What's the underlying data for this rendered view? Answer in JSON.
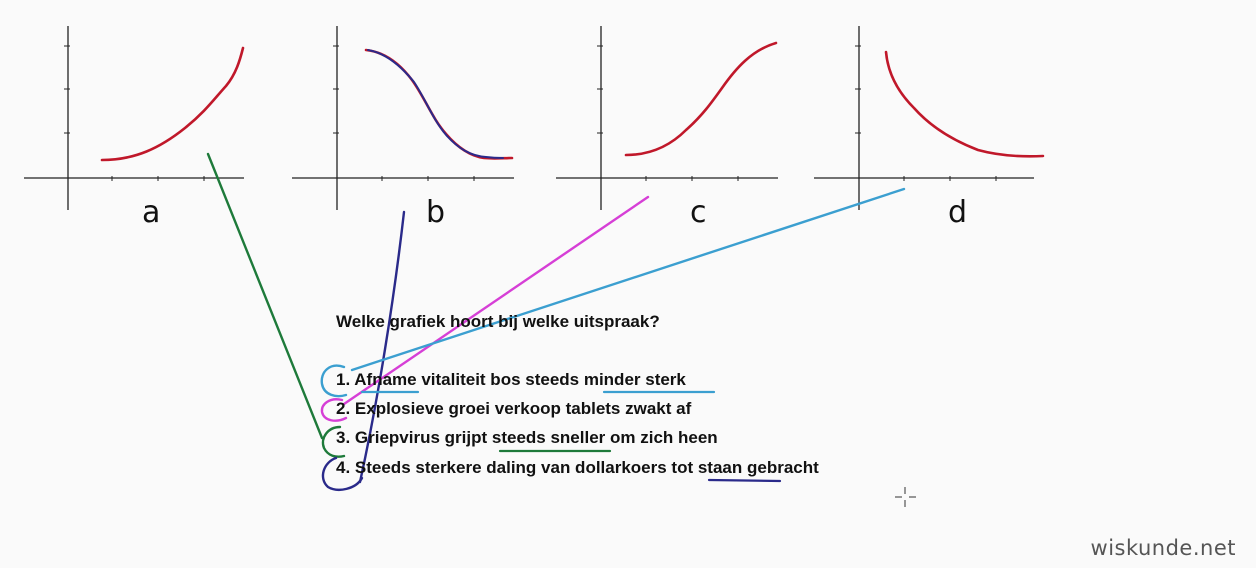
{
  "graphs": [
    {
      "label": "a",
      "shape": "increasing, steeper and steeper"
    },
    {
      "label": "b",
      "shape": "decreasing, S-shaped"
    },
    {
      "label": "c",
      "shape": "increasing, S-shaped"
    },
    {
      "label": "d",
      "shape": "decreasing, less and less steep"
    }
  ],
  "question": "Welke grafiek hoort bij welke uitspraak?",
  "statements": [
    "1. Afname vitaliteit bos steeds minder sterk",
    "2. Explosieve groei verkoop tablets zwakt af",
    "3. Griepvirus grijpt steeds sneller om zich heen",
    "4. Steeds sterkere daling van dollarkoers tot staan gebracht"
  ],
  "matches": [
    {
      "statement": "1",
      "graph": "d",
      "color": "#3b9fd0"
    },
    {
      "statement": "2",
      "graph": "c",
      "color": "#d63fd6"
    },
    {
      "statement": "3",
      "graph": "a",
      "color": "#1e7a3a"
    },
    {
      "statement": "4",
      "graph": "b",
      "color": "#2a2a8a"
    }
  ],
  "colors": {
    "curve": "#c0182a",
    "axis": "#222222"
  },
  "watermark": "wiskunde.net"
}
